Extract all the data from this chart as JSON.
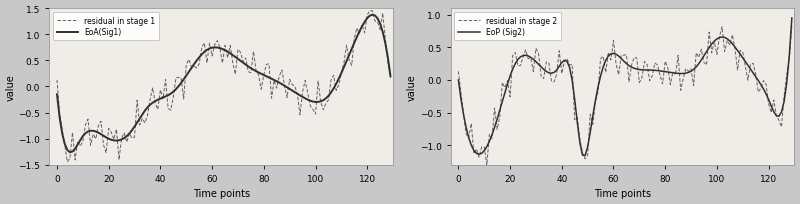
{
  "fig_width": 8.0,
  "fig_height": 2.05,
  "dpi": 100,
  "background_color": "#c8c8c8",
  "plot_bg_color": "#f0ede8",
  "subplot1": {
    "ylabel": "value",
    "xlabel": "Time points",
    "ylim": [
      -1.5,
      1.5
    ],
    "xlim": [
      -3,
      130
    ],
    "xticks": [
      0,
      20,
      40,
      60,
      80,
      100,
      120
    ],
    "yticks": [
      -1.5,
      -1.0,
      -0.5,
      0.0,
      0.5,
      1.0,
      1.5
    ],
    "legend_label_residual": "residual in stage 1",
    "legend_label_smooth": "EoA(Sig1)",
    "residual_color": "#606060",
    "smooth_color": "#303030",
    "smooth_linewidth": 1.4,
    "residual_linewidth": 0.7
  },
  "subplot2": {
    "ylabel": "value",
    "xlabel": "Time points",
    "ylim": [
      -1.3,
      1.1
    ],
    "xlim": [
      -3,
      130
    ],
    "xticks": [
      0,
      20,
      40,
      60,
      80,
      100,
      120
    ],
    "yticks": [
      -1.0,
      -0.5,
      0.0,
      0.5,
      1.0
    ],
    "legend_label_residual": "residual in stage 2",
    "legend_label_smooth": "EoP (Sig2)",
    "residual_color": "#606060",
    "smooth_color": "#303030",
    "smooth_linewidth": 1.1,
    "residual_linewidth": 0.7
  }
}
